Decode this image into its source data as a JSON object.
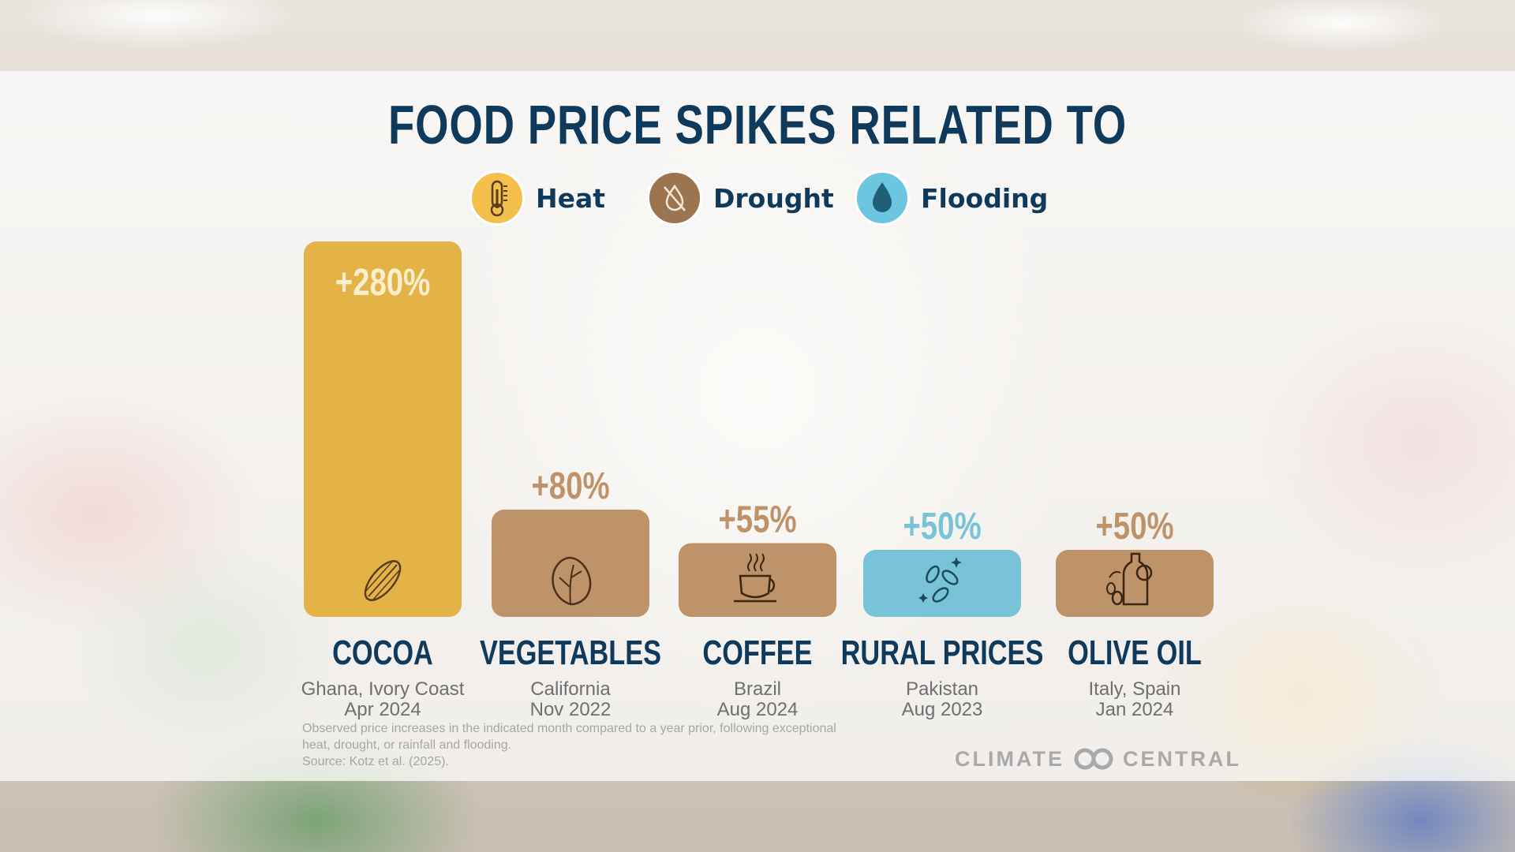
{
  "title": "FOOD PRICE SPIKES RELATED TO",
  "legend": [
    {
      "label": "Heat",
      "icon": "thermometer-icon",
      "color": "#f4c04d"
    },
    {
      "label": "Drought",
      "icon": "no-water-icon",
      "color": "#9c7450"
    },
    {
      "label": "Flooding",
      "icon": "water-drop-icon",
      "color": "#6cc6e0"
    }
  ],
  "chart_data": {
    "type": "bar",
    "title": "FOOD PRICE SPIKES RELATED TO",
    "unit": "%",
    "categories": [
      "COCOA",
      "VEGETABLES",
      "COFFEE",
      "RURAL PRICES",
      "OLIVE OIL"
    ],
    "values": [
      280,
      80,
      55,
      50,
      50
    ],
    "value_labels": [
      "+280%",
      "+80%",
      "+55%",
      "+50%",
      "+50%"
    ],
    "locations": [
      "Ghana, Ivory Coast",
      "California",
      "Brazil",
      "Pakistan",
      "Italy, Spain"
    ],
    "dates": [
      "Apr 2024",
      "Nov 2022",
      "Aug 2024",
      "Aug 2023",
      "Jan 2024"
    ],
    "drivers": [
      "Heat",
      "Drought",
      "Drought",
      "Flooding",
      "Drought"
    ],
    "colors": [
      "#e3b348",
      "#bf9369",
      "#bf9369",
      "#78c3d8",
      "#bf9369"
    ],
    "label_colors": [
      "#fbeecd",
      "#bf9369",
      "#bf9369",
      "#78c3d8",
      "#bf9369"
    ],
    "icons": [
      "cocoa-pod-icon",
      "lettuce-icon",
      "coffee-cup-icon",
      "coins-icon",
      "olive-oil-bottle-icon"
    ],
    "ylim": [
      0,
      280
    ],
    "grid": false,
    "legend_position": "top-center"
  },
  "footnote": {
    "line1": "Observed price increases in the indicated month compared to a year prior, following exceptional",
    "line2": "heat, drought, or rainfall and flooding.",
    "line3": "Source: Kotz et al. (2025)."
  },
  "brand": {
    "left": "CLIMATE",
    "right": "CENTRAL"
  }
}
